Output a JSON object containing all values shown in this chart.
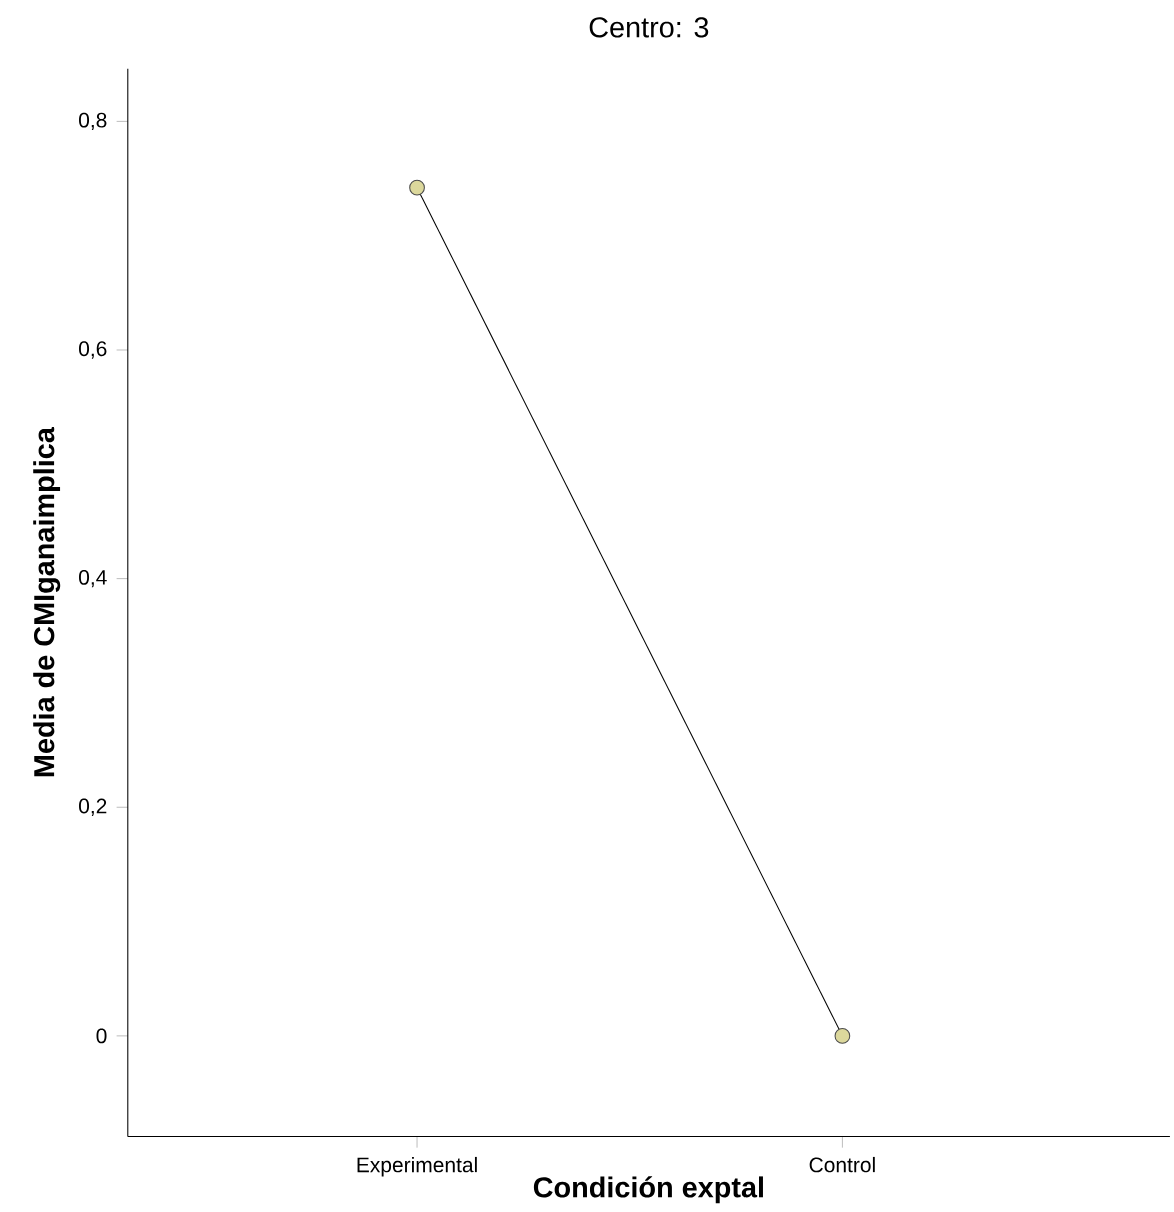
{
  "chart_data": {
    "type": "line",
    "title": "Centro: 3",
    "xlabel": "Condición exptal",
    "ylabel": "Media de CMIganaimplica",
    "categories": [
      "Experimental",
      "Control"
    ],
    "series": [
      {
        "color": "#000000",
        "values": [
          0.742,
          0.0
        ]
      }
    ],
    "marker": "circle",
    "line_style": "solid",
    "ylim": [
      -0.088,
      0.846
    ],
    "yticks": [
      0,
      {
        "value": 0.2,
        "label": "0,2"
      },
      {
        "value": 0.4,
        "label": "0,4"
      },
      {
        "value": 0.6,
        "label": "0,6"
      },
      {
        "value": 0.8,
        "label": "0,8"
      }
    ]
  }
}
